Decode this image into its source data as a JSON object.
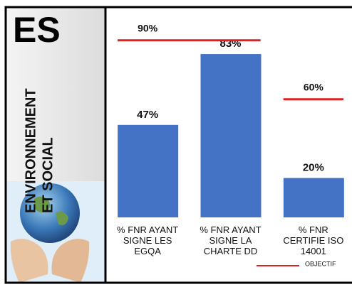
{
  "sidebar": {
    "title": "ES",
    "lines": [
      "ENVIRONNEMENT",
      "ET SOCIAL"
    ]
  },
  "chart_data": {
    "type": "bar",
    "categories": [
      "% FNR AYANT\nSIGNE LES\nEGQA",
      "% FNR AYANT\nSIGNE LA\nCHARTE DD",
      "% FNR\nCERTIFIE ISO\n14001"
    ],
    "values": [
      47,
      83,
      20
    ],
    "value_labels": [
      "47%",
      "83%",
      "20%"
    ],
    "color": "#4472c4",
    "ylim": [
      0,
      100
    ],
    "objective": {
      "name": "OBJECTIF",
      "color": "#e02020",
      "values": [
        90,
        90,
        60
      ],
      "value_labels": [
        "90%",
        null,
        "60%"
      ]
    }
  }
}
